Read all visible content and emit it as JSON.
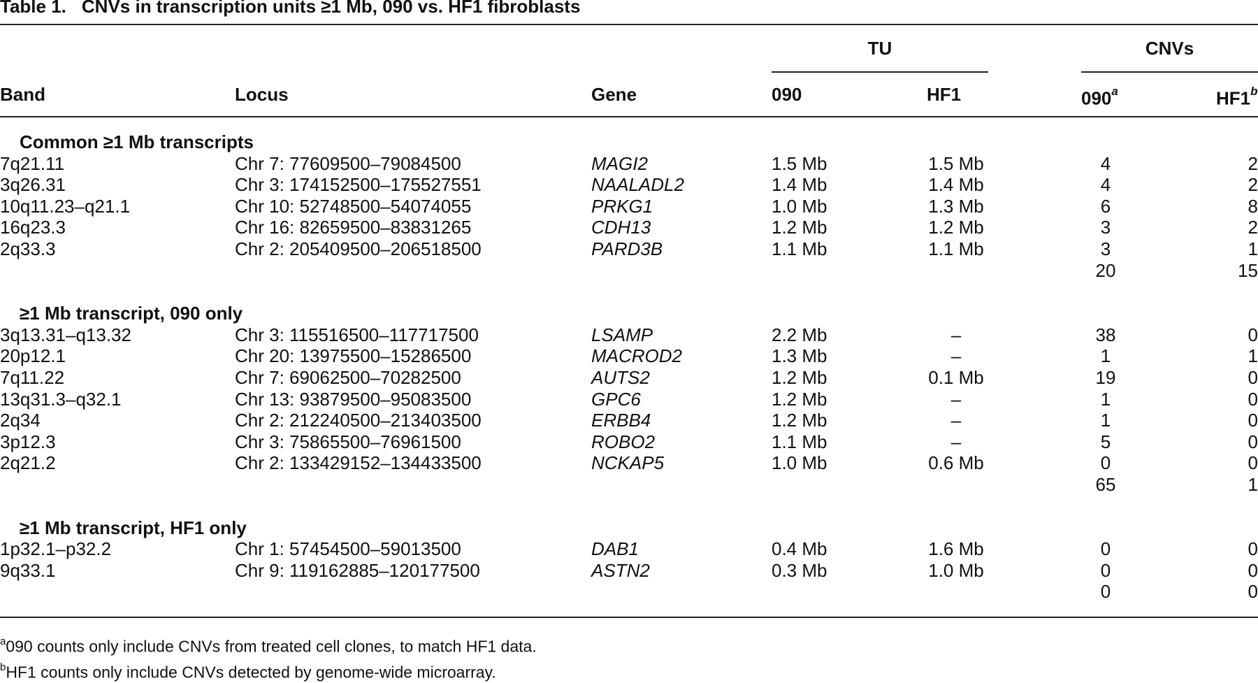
{
  "caption": {
    "label": "Table 1.",
    "text": "CNVs in transcription units ≥1 Mb, 090 vs. HF1 fibroblasts"
  },
  "headers": {
    "band": "Band",
    "locus": "Locus",
    "gene": "Gene",
    "tu_group": "TU",
    "tu_090": "090",
    "tu_hf1": "HF1",
    "cnvs_group": "CNVs",
    "cnvs_090": "090",
    "cnvs_090_mark": "a",
    "cnvs_hf1": "HF1",
    "cnvs_hf1_mark": "b"
  },
  "sections": [
    {
      "title": "Common ≥1 Mb transcripts",
      "rows": [
        {
          "band": "7q21.11",
          "locus": "Chr 7: 77609500–79084500",
          "gene": "MAGI2",
          "tu_090": "1.5 Mb",
          "tu_hf1": "1.5 Mb",
          "cnv_090": "4",
          "cnv_hf1": "2"
        },
        {
          "band": "3q26.31",
          "locus": "Chr 3: 174152500–175527551",
          "gene": "NAALADL2",
          "tu_090": "1.4 Mb",
          "tu_hf1": "1.4 Mb",
          "cnv_090": "4",
          "cnv_hf1": "2"
        },
        {
          "band": "10q11.23–q21.1",
          "locus": "Chr 10: 52748500–54074055",
          "gene": "PRKG1",
          "tu_090": "1.0 Mb",
          "tu_hf1": "1.3 Mb",
          "cnv_090": "6",
          "cnv_hf1": "8"
        },
        {
          "band": "16q23.3",
          "locus": "Chr 16: 82659500–83831265",
          "gene": "CDH13",
          "tu_090": "1.2 Mb",
          "tu_hf1": "1.2 Mb",
          "cnv_090": "3",
          "cnv_hf1": "2"
        },
        {
          "band": "2q33.3",
          "locus": "Chr 2: 205409500–206518500",
          "gene": "PARD3B",
          "tu_090": "1.1 Mb",
          "tu_hf1": "1.1 Mb",
          "cnv_090": "3",
          "cnv_hf1": "1"
        }
      ],
      "total": {
        "cnv_090": "20",
        "cnv_hf1": "15"
      }
    },
    {
      "title": "≥1 Mb transcript, 090 only",
      "rows": [
        {
          "band": "3q13.31–q13.32",
          "locus": "Chr 3: 115516500–117717500",
          "gene": "LSAMP",
          "tu_090": "2.2 Mb",
          "tu_hf1": "–",
          "cnv_090": "38",
          "cnv_hf1": "0"
        },
        {
          "band": "20p12.1",
          "locus": "Chr 20: 13975500–15286500",
          "gene": "MACROD2",
          "tu_090": "1.3 Mb",
          "tu_hf1": "–",
          "cnv_090": "1",
          "cnv_hf1": "1"
        },
        {
          "band": "7q11.22",
          "locus": "Chr 7: 69062500–70282500",
          "gene": "AUTS2",
          "tu_090": "1.2 Mb",
          "tu_hf1": "0.1 Mb",
          "cnv_090": "19",
          "cnv_hf1": "0"
        },
        {
          "band": "13q31.3–q32.1",
          "locus": "Chr 13: 93879500–95083500",
          "gene": "GPC6",
          "tu_090": "1.2 Mb",
          "tu_hf1": "–",
          "cnv_090": "1",
          "cnv_hf1": "0"
        },
        {
          "band": "2q34",
          "locus": "Chr 2: 212240500–213403500",
          "gene": "ERBB4",
          "tu_090": "1.2 Mb",
          "tu_hf1": "–",
          "cnv_090": "1",
          "cnv_hf1": "0"
        },
        {
          "band": "3p12.3",
          "locus": "Chr 3: 75865500–76961500",
          "gene": "ROBO2",
          "tu_090": "1.1 Mb",
          "tu_hf1": "–",
          "cnv_090": "5",
          "cnv_hf1": "0"
        },
        {
          "band": "2q21.2",
          "locus": "Chr 2: 133429152–134433500",
          "gene": "NCKAP5",
          "tu_090": "1.0 Mb",
          "tu_hf1": "0.6 Mb",
          "cnv_090": "0",
          "cnv_hf1": "0"
        }
      ],
      "total": {
        "cnv_090": "65",
        "cnv_hf1": "1"
      }
    },
    {
      "title": "≥1 Mb transcript, HF1 only",
      "rows": [
        {
          "band": "1p32.1–p32.2",
          "locus": "Chr 1: 57454500–59013500",
          "gene": "DAB1",
          "tu_090": "0.4 Mb",
          "tu_hf1": "1.6 Mb",
          "cnv_090": "0",
          "cnv_hf1": "0"
        },
        {
          "band": "9q33.1",
          "locus": "Chr 9: 119162885–120177500",
          "gene": "ASTN2",
          "tu_090": "0.3 Mb",
          "tu_hf1": "1.0 Mb",
          "cnv_090": "0",
          "cnv_hf1": "0"
        }
      ],
      "total": {
        "cnv_090": "0",
        "cnv_hf1": "0"
      }
    }
  ],
  "footnotes": [
    {
      "mark": "a",
      "text": "090 counts only include CNVs from treated cell clones, to match HF1 data."
    },
    {
      "mark": "b",
      "text": "HF1 counts only include CNVs detected by genome-wide microarray."
    }
  ]
}
